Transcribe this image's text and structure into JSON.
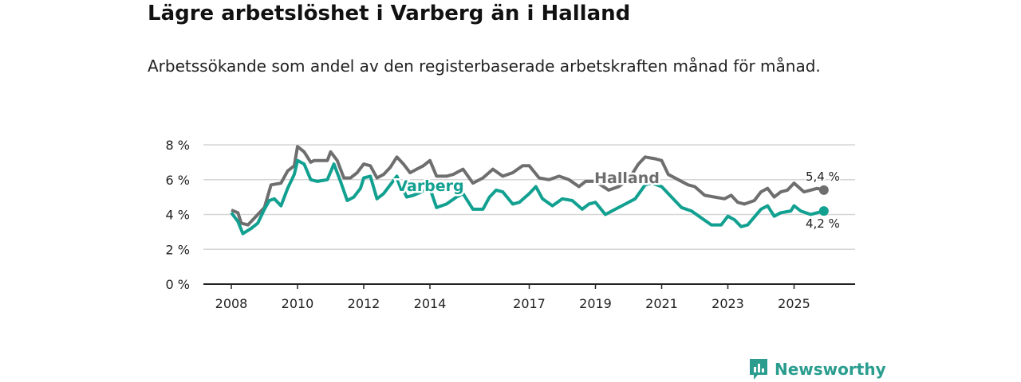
{
  "header": {
    "title": "Lägre arbetslöshet i Varberg än i Halland",
    "subtitle": "Arbetssökande som andel av den registerbaserade arbetskraften månad för månad."
  },
  "brand": {
    "name": "Newsworthy",
    "color": "#2a9d8f"
  },
  "chart_data": {
    "type": "line",
    "title": "Lägre arbetslöshet i Varberg än i Halland",
    "subtitle": "Arbetssökande som andel av den registerbaserade arbetskraften månad för månad.",
    "xlabel": "",
    "ylabel": "",
    "xlim": [
      2007.6,
      2026.9
    ],
    "ylim": [
      0,
      8
    ],
    "grid": true,
    "x_ticks": [
      2008,
      2010,
      2012,
      2014,
      2017,
      2019,
      2021,
      2023,
      2025
    ],
    "x_tick_labels": [
      "2008",
      "2010",
      "2012",
      "2014",
      "2017",
      "2019",
      "2021",
      "2023",
      "2025"
    ],
    "y_ticks": [
      0,
      2,
      4,
      6,
      8
    ],
    "y_tick_labels": [
      "0 %",
      "2 %",
      "4 %",
      "6 %",
      "8 %"
    ],
    "series": [
      {
        "name": "Halland",
        "color": "#6e6e6e",
        "end_label": "5,4 %",
        "x": [
          2008,
          2008.2,
          2008.3,
          2008.5,
          2008.75,
          2009,
          2009.2,
          2009.5,
          2009.7,
          2009.9,
          2010,
          2010.2,
          2010.4,
          2010.5,
          2010.9,
          2011,
          2011.2,
          2011.4,
          2011.6,
          2011.8,
          2012,
          2012.2,
          2012.4,
          2012.6,
          2012.8,
          2013,
          2013.2,
          2013.4,
          2013.6,
          2013.8,
          2014,
          2014.2,
          2014.5,
          2014.7,
          2015,
          2015.3,
          2015.6,
          2015.9,
          2016.2,
          2016.5,
          2016.8,
          2017,
          2017.3,
          2017.6,
          2017.9,
          2018.2,
          2018.5,
          2018.7,
          2019,
          2019.4,
          2019.7,
          2020,
          2020.3,
          2020.5,
          2020.8,
          2021,
          2021.2,
          2021.5,
          2021.8,
          2022,
          2022.3,
          2022.6,
          2022.9,
          2023.1,
          2023.3,
          2023.5,
          2023.8,
          2024,
          2024.2,
          2024.4,
          2024.6,
          2024.8,
          2025,
          2025.3,
          2025.5,
          2025.7,
          2025.9
        ],
        "y": [
          4.25,
          4.1,
          3.5,
          3.4,
          3.9,
          4.4,
          5.7,
          5.8,
          6.5,
          6.8,
          7.9,
          7.6,
          7.0,
          7.1,
          7.1,
          7.6,
          7.1,
          6.1,
          6.1,
          6.4,
          6.9,
          6.8,
          6.1,
          6.3,
          6.7,
          7.3,
          6.9,
          6.4,
          6.6,
          6.8,
          7.1,
          6.2,
          6.2,
          6.3,
          6.6,
          5.8,
          6.1,
          6.6,
          6.2,
          6.4,
          6.8,
          6.8,
          6.1,
          6.0,
          6.2,
          6.0,
          5.6,
          5.9,
          5.9,
          5.4,
          5.6,
          6.0,
          6.9,
          7.3,
          7.2,
          7.1,
          6.3,
          6.0,
          5.7,
          5.6,
          5.1,
          5.0,
          4.9,
          5.1,
          4.7,
          4.6,
          4.8,
          5.3,
          5.5,
          5.0,
          5.3,
          5.4,
          5.8,
          5.3,
          5.4,
          5.5,
          5.4
        ]
      },
      {
        "name": "Varberg",
        "color": "#12a090",
        "end_label": "4,2 %",
        "x": [
          2008,
          2008.2,
          2008.35,
          2008.6,
          2008.8,
          2009,
          2009.15,
          2009.3,
          2009.5,
          2009.7,
          2009.9,
          2010,
          2010.2,
          2010.4,
          2010.6,
          2010.9,
          2011.1,
          2011.3,
          2011.5,
          2011.7,
          2011.9,
          2012,
          2012.2,
          2012.4,
          2012.6,
          2012.8,
          2013,
          2013.3,
          2013.5,
          2014,
          2014.2,
          2014.5,
          2014.8,
          2015,
          2015.3,
          2015.6,
          2015.8,
          2016,
          2016.2,
          2016.5,
          2016.7,
          2017,
          2017.2,
          2017.4,
          2017.7,
          2018,
          2018.3,
          2018.6,
          2018.8,
          2019,
          2019.3,
          2019.6,
          2019.9,
          2020.2,
          2020.5,
          2020.7,
          2021,
          2021.3,
          2021.6,
          2021.9,
          2022.2,
          2022.5,
          2022.8,
          2023,
          2023.2,
          2023.4,
          2023.6,
          2024,
          2024.2,
          2024.4,
          2024.6,
          2024.9,
          2025,
          2025.2,
          2025.5,
          2025.7,
          2025.9
        ],
        "y": [
          4.1,
          3.6,
          2.9,
          3.2,
          3.5,
          4.3,
          4.8,
          4.9,
          4.5,
          5.5,
          6.3,
          7.1,
          6.9,
          6.0,
          5.9,
          6.0,
          6.9,
          5.9,
          4.8,
          5.0,
          5.5,
          6.1,
          6.2,
          4.9,
          5.2,
          5.7,
          6.2,
          5.0,
          5.1,
          5.5,
          4.4,
          4.6,
          5.0,
          5.2,
          4.3,
          4.3,
          5.0,
          5.4,
          5.3,
          4.6,
          4.7,
          5.2,
          5.6,
          4.9,
          4.5,
          4.9,
          4.8,
          4.3,
          4.6,
          4.7,
          4.0,
          4.3,
          4.6,
          4.9,
          5.7,
          5.8,
          5.6,
          5.0,
          4.4,
          4.2,
          3.8,
          3.4,
          3.4,
          3.9,
          3.7,
          3.3,
          3.4,
          4.3,
          4.5,
          3.9,
          4.1,
          4.2,
          4.5,
          4.2,
          4.0,
          4.1,
          4.2
        ]
      }
    ]
  }
}
